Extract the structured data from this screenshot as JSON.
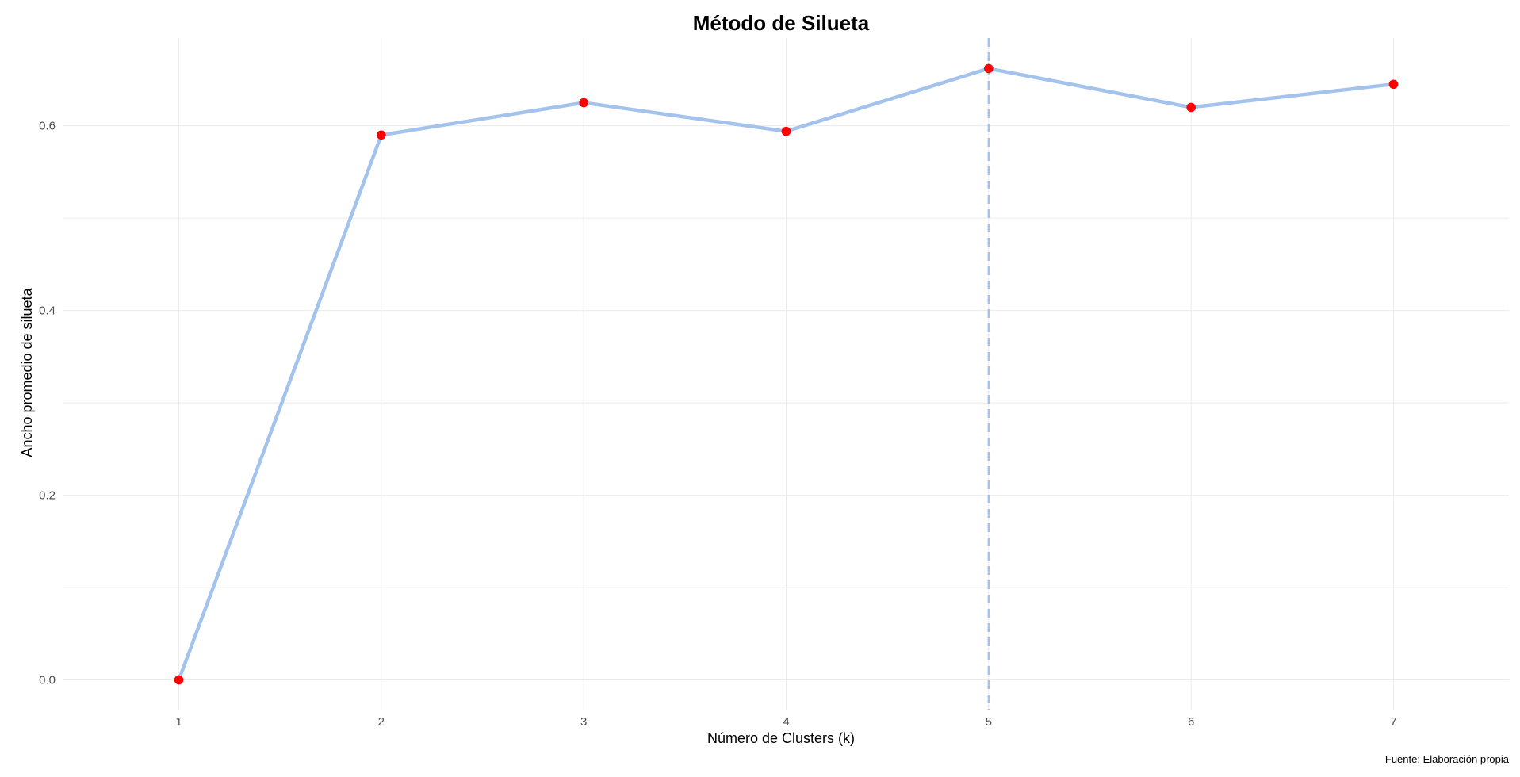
{
  "chart_data": {
    "type": "line",
    "title": "Método de Silueta",
    "xlabel": "Número de Clusters (k)",
    "ylabel": "Ancho promedio de silueta",
    "caption": "Fuente: Elaboración propia",
    "x": [
      1,
      2,
      3,
      4,
      5,
      6,
      7
    ],
    "series": [
      {
        "values": [
          0.0,
          0.59,
          0.625,
          0.594,
          0.662,
          0.62,
          0.645
        ]
      }
    ],
    "x_ticks": [
      "1",
      "2",
      "3",
      "4",
      "5",
      "6",
      "7"
    ],
    "y_ticks": [
      "0.0",
      "0.2",
      "0.4",
      "0.6"
    ],
    "y_tick_values": [
      0.0,
      0.2,
      0.4,
      0.6
    ],
    "xlim": [
      0.43,
      7.57
    ],
    "ylim": [
      -0.033,
      0.695
    ],
    "grid": true,
    "optimal_k": 5,
    "vline_style": "dashed",
    "colors": {
      "line": "#a4c3ec",
      "points": "#ff0000",
      "vline": "#a4c3ec",
      "grid": "#ebebeb"
    }
  }
}
